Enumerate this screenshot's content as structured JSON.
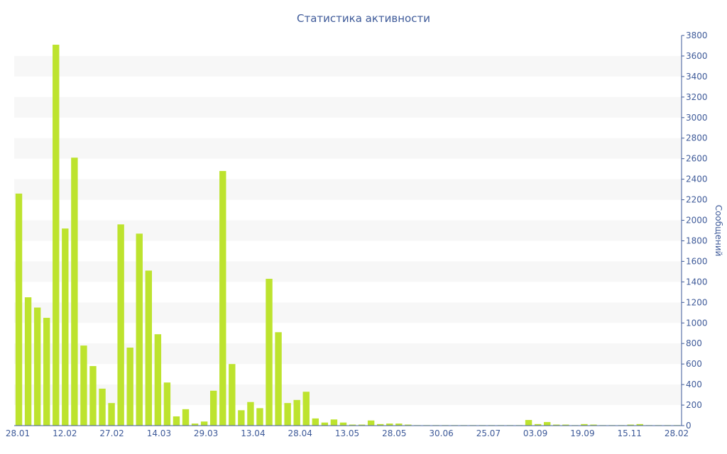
{
  "chart_data": {
    "type": "bar",
    "title": "Статистика активности",
    "ylabel": "Сообщений",
    "xlabel": "",
    "ylim": [
      0,
      3800
    ],
    "y_ticks": [
      0,
      200,
      400,
      600,
      800,
      1000,
      1200,
      1400,
      1600,
      1800,
      2000,
      2200,
      2400,
      2600,
      2800,
      3000,
      3200,
      3400,
      3600,
      3800
    ],
    "y_axis_side": "right",
    "grid": "alternating horizontal bands",
    "x_tick_labels": [
      "28.01",
      "12.02",
      "27.02",
      "14.03",
      "29.03",
      "13.04",
      "28.04",
      "13.05",
      "28.05",
      "30.06",
      "25.07",
      "03.09",
      "19.09",
      "15.11",
      "28.02"
    ],
    "bar_color": "#bde32e",
    "text_color": "#3e5a99",
    "values": [
      2260,
      1250,
      1150,
      1050,
      3710,
      1920,
      2610,
      780,
      580,
      360,
      220,
      1960,
      760,
      1870,
      1510,
      890,
      420,
      90,
      160,
      20,
      40,
      340,
      2480,
      600,
      150,
      230,
      170,
      1430,
      910,
      220,
      250,
      330,
      70,
      30,
      60,
      30,
      10,
      10,
      50,
      15,
      20,
      20,
      10,
      5,
      5,
      5,
      5,
      5,
      5,
      5,
      5,
      5,
      5,
      5,
      5,
      55,
      15,
      35,
      10,
      10,
      5,
      15,
      10,
      5,
      5,
      5,
      10,
      15,
      5,
      5,
      5,
      5
    ]
  }
}
